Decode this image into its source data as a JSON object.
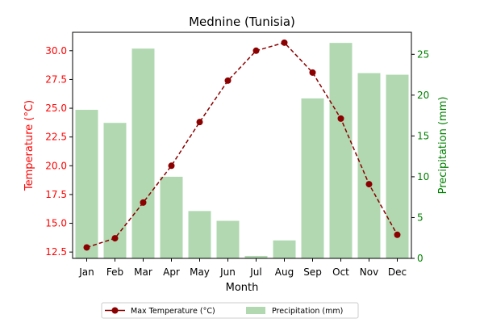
{
  "chart_data": {
    "type": "bar",
    "title": "Mednine (Tunisia)",
    "xlabel": "Month",
    "ylabel_left": "Temperature (°C)",
    "ylabel_right": "Precipitation (mm)",
    "categories": [
      "Jan",
      "Feb",
      "Mar",
      "Apr",
      "May",
      "Jun",
      "Jul",
      "Aug",
      "Sep",
      "Oct",
      "Nov",
      "Dec"
    ],
    "series": [
      {
        "name": "Max Temperature (°C)",
        "kind": "line",
        "axis": "left",
        "color": "#8b0000",
        "values": [
          12.9,
          13.7,
          16.8,
          20.0,
          23.8,
          27.4,
          30.0,
          30.7,
          28.1,
          24.1,
          18.4,
          14.0
        ]
      },
      {
        "name": "Precipitation (mm)",
        "kind": "bar",
        "axis": "right",
        "color": "#b1d8b1",
        "values": [
          18.2,
          16.6,
          25.7,
          10.0,
          5.8,
          4.6,
          0.3,
          2.2,
          19.6,
          26.4,
          22.7,
          22.5
        ]
      }
    ],
    "ylim_left": [
      11.95,
      31.6
    ],
    "ylim_right": [
      0,
      27.7
    ],
    "yticks_left": [
      "12.5",
      "15.0",
      "17.5",
      "20.0",
      "22.5",
      "25.0",
      "27.5",
      "30.0"
    ],
    "yticks_right": [
      "0",
      "5",
      "10",
      "15",
      "20",
      "25"
    ],
    "left_axis_color": "#ff0000",
    "right_axis_color": "#008000",
    "grid": false,
    "legend_position": "bottom-center"
  }
}
